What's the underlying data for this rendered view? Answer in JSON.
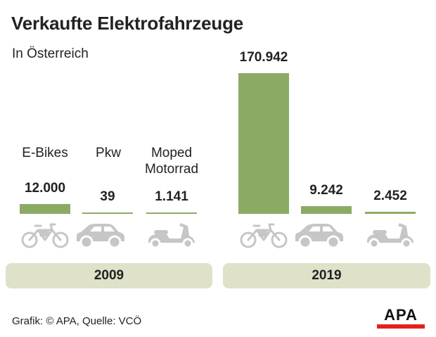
{
  "chart_data": {
    "type": "bar",
    "title": "Verkaufte Elektrofahrzeuge",
    "subtitle": "In Österreich",
    "categories": [
      "E-Bikes",
      "Pkw",
      "Moped Motorrad"
    ],
    "category_labels": [
      [
        "E-Bikes"
      ],
      [
        "Pkw"
      ],
      [
        "Moped",
        "Motorrad"
      ]
    ],
    "series": [
      {
        "name": "2009",
        "values": [
          12000,
          39,
          1141
        ],
        "labels": [
          "12.000",
          "39",
          "1.141"
        ]
      },
      {
        "name": "2019",
        "values": [
          170942,
          9242,
          2452
        ],
        "labels": [
          "170.942",
          "9.242",
          "2.452"
        ]
      }
    ],
    "icons": [
      "bicycle-icon",
      "car-icon",
      "scooter-icon"
    ],
    "bar_color": "#8bab65",
    "icon_color": "#c6c6c6",
    "year_band_color": "#dfe2c9"
  },
  "source": "Grafik: © APA, Quelle: VCÖ",
  "logo": {
    "text": "APA",
    "accent": "#e2231a"
  }
}
